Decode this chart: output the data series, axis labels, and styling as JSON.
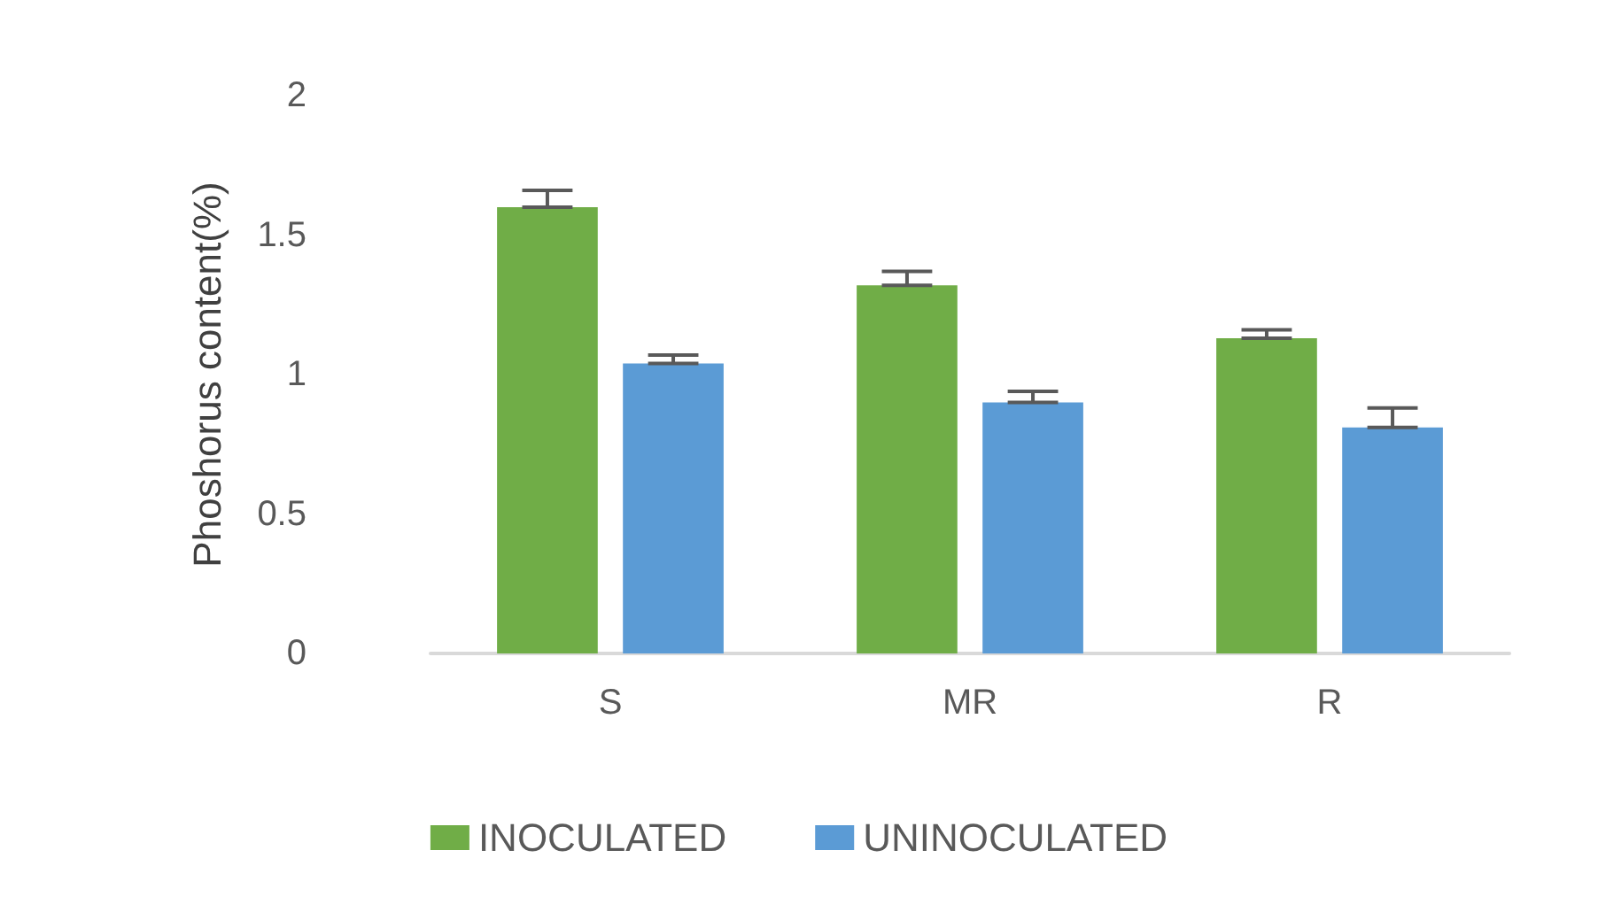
{
  "chart_data": {
    "type": "bar",
    "ylabel": "Phoshorus content(%)",
    "categories": [
      "S",
      "MR",
      "R"
    ],
    "series": [
      {
        "name": "INOCULATED",
        "color": "#70ad47",
        "values": [
          1.6,
          1.32,
          1.13
        ],
        "errors": [
          [
            1.6,
            1.66
          ],
          [
            1.32,
            1.37
          ],
          [
            1.13,
            1.16
          ]
        ]
      },
      {
        "name": "UNINOCULATED",
        "color": "#5b9bd5",
        "values": [
          1.04,
          0.9,
          0.81
        ],
        "errors": [
          [
            1.04,
            1.07
          ],
          [
            0.9,
            0.94
          ],
          [
            0.81,
            0.88
          ]
        ]
      }
    ],
    "ylim": [
      0,
      2
    ],
    "yticks": [
      0,
      0.5,
      1,
      1.5,
      2
    ],
    "grid": false,
    "legend": "bottom"
  }
}
